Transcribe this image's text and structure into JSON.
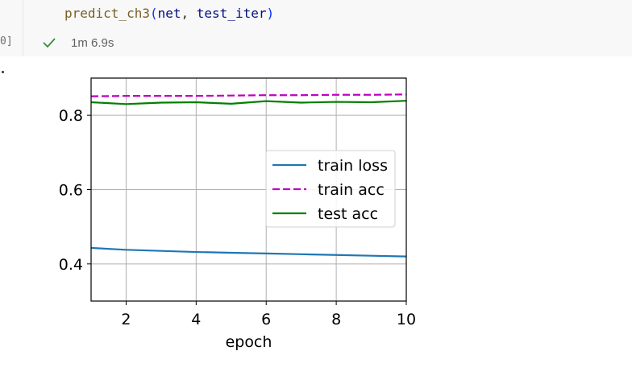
{
  "cell": {
    "exec_count": "0]",
    "code": {
      "fn": "predict_ch3",
      "open": "(",
      "arg1": "net",
      "sep": ", ",
      "arg2": "test_iter",
      "close": ")"
    },
    "status_icon": "check-icon",
    "status_time": "1m 6.9s",
    "success_color": "#388a34"
  },
  "chart_data": {
    "type": "line",
    "title": "",
    "xlabel": "epoch",
    "ylabel": "",
    "xlim": [
      1,
      10
    ],
    "ylim": [
      0.3,
      0.9
    ],
    "xticks": [
      2,
      4,
      6,
      8,
      10
    ],
    "yticks": [
      0.4,
      0.6,
      0.8
    ],
    "grid": true,
    "legend_position": "center-right",
    "x": [
      1,
      2,
      3,
      4,
      5,
      6,
      7,
      8,
      9,
      10
    ],
    "series": [
      {
        "name": "train loss",
        "color": "#1f77b4",
        "dash": "solid",
        "values": [
          0.443,
          0.438,
          0.435,
          0.432,
          0.43,
          0.428,
          0.426,
          0.424,
          0.422,
          0.42
        ]
      },
      {
        "name": "train acc",
        "color": "#bf00bf",
        "dash": "dashed",
        "values": [
          0.851,
          0.852,
          0.852,
          0.852,
          0.853,
          0.854,
          0.854,
          0.855,
          0.855,
          0.856
        ]
      },
      {
        "name": "test acc",
        "color": "#008000",
        "dash": "solid",
        "values": [
          0.835,
          0.83,
          0.834,
          0.835,
          0.831,
          0.838,
          0.834,
          0.836,
          0.835,
          0.839
        ]
      }
    ]
  }
}
